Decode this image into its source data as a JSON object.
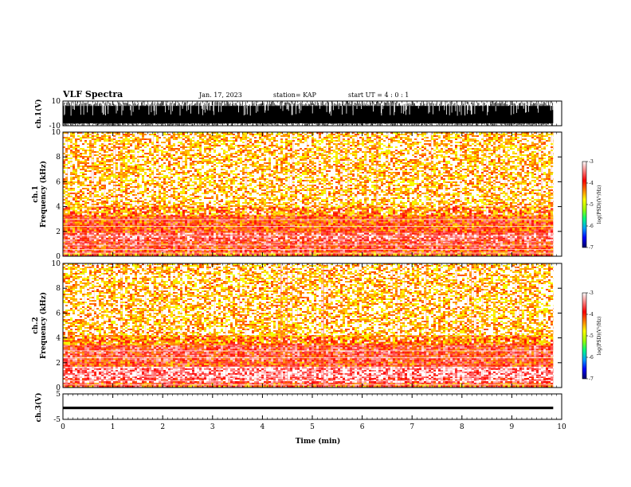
{
  "header": {
    "title": "VLF Spectra",
    "date": "Jan. 17, 2023",
    "station": "station= KAP",
    "start_ut": "start  UT =   4 : 0  : 1"
  },
  "colors": {
    "background": "#ffffff",
    "trace": "#000000",
    "spec_low": "#ffd6d6",
    "spec_mid": "#ff2a1a",
    "spec_high": "#ffe600",
    "spec_peak": "#3cff20"
  },
  "colorbar": {
    "label": "log(PSD)(V²/Hz)",
    "ticks": [
      "-3",
      "-4",
      "-5",
      "-6",
      "-7"
    ],
    "values": [
      -3,
      -4,
      -5,
      -6,
      -7
    ],
    "stops": [
      "#000066",
      "#0000ff",
      "#00a0ff",
      "#00ff80",
      "#a0ff00",
      "#ffff00",
      "#ff8000",
      "#ff0000",
      "#ff8080",
      "#ffffff"
    ]
  },
  "chart_data": [
    {
      "type": "line",
      "panel": "ch1-waveform",
      "ylabel": "ch.1(V)",
      "ylim": [
        -10,
        10
      ],
      "yticks": [
        "10",
        "-10"
      ],
      "xlim": [
        0,
        10
      ],
      "description_shown": "dense oscillating waveform spanning full range",
      "duration_min": 9.83
    },
    {
      "type": "heatmap",
      "panel": "ch1-spectrogram",
      "ylabel": "ch.1\nFrequency (kHz)",
      "ylabel_line1": "ch.1",
      "ylabel_line2": "Frequency (kHz)",
      "ylim": [
        0,
        10
      ],
      "yticks": [
        "0",
        "2",
        "4",
        "6",
        "8",
        "10"
      ],
      "xlim": [
        0,
        10
      ],
      "duration_min": 9.83,
      "bands_khz": [
        {
          "from": 0.0,
          "to": 0.4,
          "level": -4.2
        },
        {
          "from": 0.4,
          "to": 0.8,
          "level": -3.9
        },
        {
          "from": 0.8,
          "to": 1.3,
          "level": -3.8
        },
        {
          "from": 1.3,
          "to": 2.0,
          "level": -3.6
        },
        {
          "from": 2.0,
          "to": 3.3,
          "level": -4.0
        },
        {
          "from": 3.3,
          "to": 4.0,
          "level": -4.5
        },
        {
          "from": 4.0,
          "to": 10.0,
          "level": -4.8
        }
      ]
    },
    {
      "type": "heatmap",
      "panel": "ch2-spectrogram",
      "ylabel": "ch.2\nFrequency (kHz)",
      "ylabel_line1": "ch.2",
      "ylabel_line2": "Frequency (kHz)",
      "ylim": [
        0,
        10
      ],
      "yticks": [
        "0",
        "2",
        "4",
        "6",
        "8",
        "10"
      ],
      "xlim": [
        0,
        10
      ],
      "duration_min": 9.83,
      "bands_khz": [
        {
          "from": 0.0,
          "to": 0.4,
          "level": -4.0
        },
        {
          "from": 0.4,
          "to": 0.9,
          "level": -3.5
        },
        {
          "from": 0.9,
          "to": 1.8,
          "level": -3.3
        },
        {
          "from": 1.8,
          "to": 2.2,
          "level": -4.0
        },
        {
          "from": 2.2,
          "to": 3.5,
          "level": -3.8
        },
        {
          "from": 3.5,
          "to": 4.2,
          "level": -4.4
        },
        {
          "from": 4.2,
          "to": 10.0,
          "level": -4.8
        }
      ]
    },
    {
      "type": "line",
      "panel": "ch3-waveform",
      "ylabel": "ch.3(V)",
      "ylim": [
        -5,
        5
      ],
      "yticks": [
        "5",
        "-5"
      ],
      "xlim": [
        0,
        10
      ],
      "duration_min": 9.83,
      "level_v": -0.5,
      "amplitude_v": 0.5
    }
  ],
  "xaxis": {
    "label": "Time (min)",
    "ticks": [
      "0",
      "1",
      "2",
      "3",
      "4",
      "5",
      "6",
      "7",
      "8",
      "9",
      "10"
    ],
    "range": [
      0,
      10
    ]
  }
}
